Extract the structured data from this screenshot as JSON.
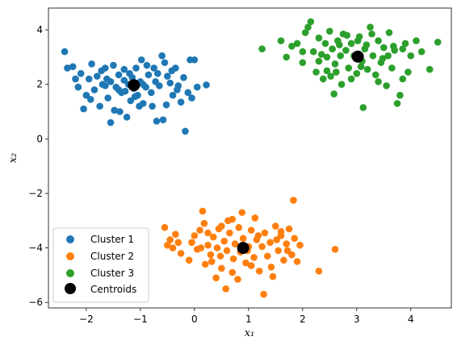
{
  "chart_data": {
    "type": "scatter",
    "title": "",
    "xlabel": "x₁",
    "ylabel": "x₂",
    "xlim": [
      -2.7,
      4.75
    ],
    "ylim": [
      -6.2,
      4.8
    ],
    "xticks": [
      -2,
      -1,
      0,
      1,
      2,
      3,
      4
    ],
    "yticks": [
      -6,
      -4,
      -2,
      0,
      2,
      4
    ],
    "xtick_labels": [
      "−2",
      "−1",
      "0",
      "1",
      "2",
      "3",
      "4"
    ],
    "ytick_labels": [
      "−6",
      "−4",
      "−2",
      "0",
      "2",
      "4"
    ],
    "grid": false,
    "legend_position": "lower-left",
    "series": [
      {
        "name": "Cluster 1",
        "color": "#1f77b4",
        "points": [
          [
            -2.4,
            3.2
          ],
          [
            -2.35,
            2.6
          ],
          [
            -2.25,
            2.65
          ],
          [
            -2.15,
            1.9
          ],
          [
            -2.1,
            2.4
          ],
          [
            -2.05,
            1.1
          ],
          [
            -2.0,
            1.6
          ],
          [
            -1.95,
            2.2
          ],
          [
            -1.9,
            2.75
          ],
          [
            -1.85,
            1.8
          ],
          [
            -1.8,
            2.3
          ],
          [
            -1.75,
            1.2
          ],
          [
            -1.7,
            2.0
          ],
          [
            -1.65,
            2.6
          ],
          [
            -1.6,
            1.5
          ],
          [
            -1.55,
            2.1
          ],
          [
            -1.5,
            2.7
          ],
          [
            -1.45,
            1.9
          ],
          [
            -1.4,
            2.35
          ],
          [
            -1.38,
            1.0
          ],
          [
            -1.35,
            1.7
          ],
          [
            -1.3,
            2.55
          ],
          [
            -1.25,
            0.8
          ],
          [
            -1.22,
            2.0
          ],
          [
            -1.18,
            1.4
          ],
          [
            -1.15,
            2.25
          ],
          [
            -1.12,
            1.85
          ],
          [
            -1.08,
            2.6
          ],
          [
            -1.05,
            1.6
          ],
          [
            -1.0,
            2.1
          ],
          [
            -0.98,
            2.9
          ],
          [
            -0.95,
            1.3
          ],
          [
            -0.9,
            1.9
          ],
          [
            -0.85,
            2.35
          ],
          [
            -0.8,
            1.7
          ],
          [
            -0.75,
            2.6
          ],
          [
            -0.72,
            2.1
          ],
          [
            -0.7,
            0.65
          ],
          [
            -0.68,
            2.4
          ],
          [
            -0.65,
            1.95
          ],
          [
            -0.6,
            3.05
          ],
          [
            -0.55,
            2.8
          ],
          [
            -0.52,
            1.25
          ],
          [
            -0.5,
            2.3
          ],
          [
            -0.45,
            2.05
          ],
          [
            -0.4,
            1.6
          ],
          [
            -0.35,
            2.6
          ],
          [
            -0.3,
            1.95
          ],
          [
            -0.25,
            1.35
          ],
          [
            -0.2,
            2.25
          ],
          [
            -0.17,
            0.28
          ],
          [
            -0.12,
            1.7
          ],
          [
            -0.08,
            2.9
          ],
          [
            -0.05,
            1.5
          ],
          [
            0.0,
            2.9
          ],
          [
            0.05,
            1.9
          ],
          [
            -1.48,
            1.05
          ],
          [
            -1.28,
            1.75
          ],
          [
            -1.62,
            2.2
          ],
          [
            -1.72,
            2.5
          ],
          [
            -0.88,
            2.7
          ],
          [
            -0.58,
            0.7
          ],
          [
            -1.02,
            1.2
          ],
          [
            -1.92,
            1.45
          ],
          [
            0.22,
            1.98
          ],
          [
            -0.32,
            1.8
          ],
          [
            -1.2,
            2.4
          ],
          [
            -0.95,
            2.0
          ],
          [
            -1.4,
            1.8
          ],
          [
            -2.2,
            2.2
          ],
          [
            -1.55,
            0.6
          ],
          [
            -1.3,
            2.15
          ],
          [
            -1.1,
            1.55
          ],
          [
            -0.78,
            1.2
          ],
          [
            -0.42,
            2.5
          ],
          [
            -1.65,
            1.95
          ]
        ]
      },
      {
        "name": "Cluster 2",
        "color": "#ff7f0e",
        "points": [
          [
            -0.55,
            -3.25
          ],
          [
            -0.5,
            -3.9
          ],
          [
            -0.45,
            -3.7
          ],
          [
            -0.4,
            -4.0
          ],
          [
            -0.35,
            -3.5
          ],
          [
            -0.25,
            -4.2
          ],
          [
            -0.1,
            -4.45
          ],
          [
            -0.05,
            -3.8
          ],
          [
            0.0,
            -3.55
          ],
          [
            0.05,
            -4.05
          ],
          [
            0.1,
            -3.35
          ],
          [
            0.15,
            -2.65
          ],
          [
            0.18,
            -3.1
          ],
          [
            0.2,
            -4.6
          ],
          [
            0.25,
            -3.9
          ],
          [
            0.3,
            -4.25
          ],
          [
            0.35,
            -3.6
          ],
          [
            0.4,
            -5.1
          ],
          [
            0.42,
            -4.0
          ],
          [
            0.45,
            -3.3
          ],
          [
            0.5,
            -4.75
          ],
          [
            0.55,
            -3.75
          ],
          [
            0.58,
            -5.5
          ],
          [
            0.6,
            -4.1
          ],
          [
            0.65,
            -3.45
          ],
          [
            0.7,
            -2.95
          ],
          [
            0.72,
            -4.4
          ],
          [
            0.75,
            -3.85
          ],
          [
            0.8,
            -5.15
          ],
          [
            0.82,
            -3.25
          ],
          [
            0.85,
            -4.15
          ],
          [
            0.9,
            -3.65
          ],
          [
            0.95,
            -4.55
          ],
          [
            1.0,
            -3.95
          ],
          [
            1.05,
            -3.35
          ],
          [
            1.1,
            -4.35
          ],
          [
            1.12,
            -2.9
          ],
          [
            1.15,
            -3.7
          ],
          [
            1.2,
            -4.85
          ],
          [
            1.25,
            -3.95
          ],
          [
            1.28,
            -5.7
          ],
          [
            1.3,
            -3.45
          ],
          [
            1.35,
            -4.3
          ],
          [
            1.4,
            -3.8
          ],
          [
            1.45,
            -5.05
          ],
          [
            1.5,
            -3.2
          ],
          [
            1.55,
            -4.1
          ],
          [
            1.6,
            -3.55
          ],
          [
            1.65,
            -4.45
          ],
          [
            1.7,
            -3.85
          ],
          [
            1.75,
            -3.3
          ],
          [
            1.8,
            -4.25
          ],
          [
            1.83,
            -2.25
          ],
          [
            1.85,
            -3.65
          ],
          [
            1.9,
            -4.5
          ],
          [
            1.95,
            -3.9
          ],
          [
            2.3,
            -4.85
          ],
          [
            2.6,
            -4.05
          ],
          [
            0.88,
            -2.7
          ],
          [
            0.62,
            -3.0
          ],
          [
            1.18,
            -3.55
          ],
          [
            0.32,
            -4.5
          ],
          [
            1.42,
            -4.7
          ],
          [
            0.12,
            -4.0
          ],
          [
            1.6,
            -3.4
          ],
          [
            0.5,
            -3.2
          ],
          [
            0.98,
            -4.1
          ],
          [
            1.72,
            -4.1
          ],
          [
            0.7,
            -4.9
          ],
          [
            0.25,
            -3.45
          ],
          [
            1.05,
            -4.65
          ],
          [
            1.52,
            -3.7
          ],
          [
            -0.3,
            -3.8
          ],
          [
            0.48,
            -4.3
          ]
        ]
      },
      {
        "name": "Cluster 3",
        "color": "#2ca02c",
        "points": [
          [
            1.25,
            3.3
          ],
          [
            1.6,
            3.6
          ],
          [
            1.7,
            3.0
          ],
          [
            1.8,
            3.4
          ],
          [
            1.9,
            3.5
          ],
          [
            2.0,
            2.8
          ],
          [
            2.05,
            3.9
          ],
          [
            2.1,
            4.1
          ],
          [
            2.15,
            4.3
          ],
          [
            2.2,
            3.2
          ],
          [
            2.25,
            2.45
          ],
          [
            2.3,
            3.7
          ],
          [
            2.35,
            3.1
          ],
          [
            2.38,
            2.2
          ],
          [
            2.42,
            3.5
          ],
          [
            2.45,
            2.5
          ],
          [
            2.5,
            3.95
          ],
          [
            2.55,
            3.3
          ],
          [
            2.58,
            1.65
          ],
          [
            2.6,
            2.75
          ],
          [
            2.65,
            3.6
          ],
          [
            2.7,
            3.05
          ],
          [
            2.72,
            2.0
          ],
          [
            2.75,
            3.85
          ],
          [
            2.8,
            3.25
          ],
          [
            2.85,
            2.6
          ],
          [
            2.9,
            3.5
          ],
          [
            2.95,
            3.05
          ],
          [
            3.0,
            2.4
          ],
          [
            3.05,
            3.75
          ],
          [
            3.1,
            2.85
          ],
          [
            3.12,
            1.15
          ],
          [
            3.15,
            3.3
          ],
          [
            3.2,
            2.55
          ],
          [
            3.25,
            4.1
          ],
          [
            3.3,
            3.05
          ],
          [
            3.35,
            2.35
          ],
          [
            3.4,
            3.6
          ],
          [
            3.45,
            2.8
          ],
          [
            3.5,
            3.35
          ],
          [
            3.55,
            1.95
          ],
          [
            3.6,
            3.9
          ],
          [
            3.65,
            2.6
          ],
          [
            3.7,
            3.25
          ],
          [
            3.75,
            1.3
          ],
          [
            3.8,
            1.6
          ],
          [
            3.85,
            2.2
          ],
          [
            3.9,
            3.5
          ],
          [
            4.0,
            3.05
          ],
          [
            4.1,
            3.6
          ],
          [
            4.2,
            3.2
          ],
          [
            4.35,
            2.55
          ],
          [
            4.5,
            3.55
          ],
          [
            2.52,
            2.3
          ],
          [
            2.9,
            2.2
          ],
          [
            3.28,
            3.85
          ],
          [
            2.68,
            3.45
          ],
          [
            3.02,
            3.6
          ],
          [
            3.4,
            2.1
          ],
          [
            2.3,
            2.85
          ],
          [
            3.58,
            3.05
          ],
          [
            2.82,
            3.8
          ],
          [
            3.18,
            3.45
          ],
          [
            2.62,
            2.45
          ],
          [
            3.08,
            2.65
          ],
          [
            3.68,
            3.4
          ],
          [
            2.45,
            3.0
          ],
          [
            3.48,
            2.95
          ],
          [
            3.95,
            2.45
          ],
          [
            2.0,
            3.2
          ],
          [
            3.85,
            3.3
          ]
        ]
      }
    ],
    "centroids": {
      "name": "Centroids",
      "color": "#000000",
      "points": [
        [
          -1.12,
          1.97
        ],
        [
          0.9,
          -4.0
        ],
        [
          3.02,
          3.02
        ]
      ]
    }
  }
}
